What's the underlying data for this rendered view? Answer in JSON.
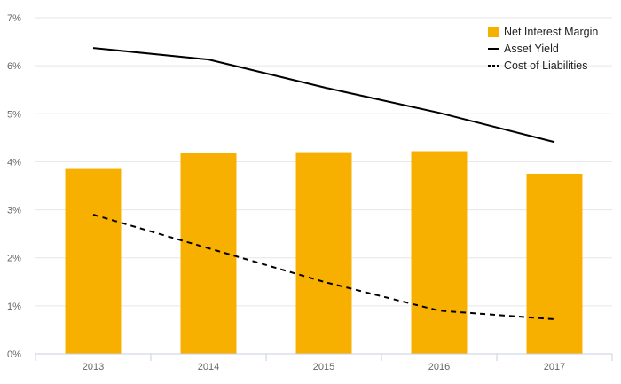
{
  "chart_data": {
    "type": "bar",
    "categories": [
      "2013",
      "2014",
      "2015",
      "2016",
      "2017"
    ],
    "series": [
      {
        "name": "Net Interest Margin",
        "kind": "bar",
        "color": "#f8b000",
        "values": [
          3.85,
          4.18,
          4.2,
          4.22,
          3.75
        ]
      },
      {
        "name": "Asset Yield",
        "kind": "line",
        "style": "solid",
        "color": "#000000",
        "values": [
          6.37,
          6.13,
          5.55,
          5.02,
          4.41
        ]
      },
      {
        "name": "Cost of Liabilities",
        "kind": "line",
        "style": "dashed",
        "color": "#000000",
        "values": [
          2.9,
          2.2,
          1.5,
          0.9,
          0.72
        ]
      }
    ],
    "y_ticks": [
      "0%",
      "1%",
      "2%",
      "3%",
      "4%",
      "5%",
      "6%",
      "7%"
    ],
    "ylim": [
      0,
      7
    ],
    "grid": true,
    "legend_position": "top-right"
  }
}
